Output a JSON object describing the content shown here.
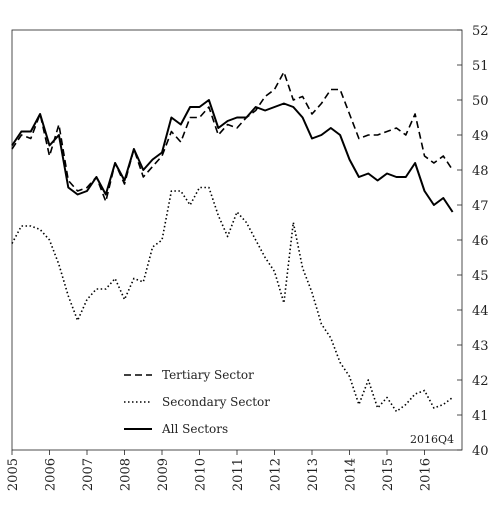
{
  "chart_data": {
    "type": "line",
    "title": "",
    "xlabel": "",
    "ylabel": "",
    "xlim": [
      2005,
      2017
    ],
    "ylim": [
      40,
      52
    ],
    "x_ticks": [
      "2005",
      "2006",
      "2007",
      "2008",
      "2009",
      "2010",
      "2011",
      "2012",
      "2013",
      "2014",
      "2015",
      "2016"
    ],
    "y_ticks": [
      "40",
      "41",
      "42",
      "43",
      "44",
      "45",
      "46",
      "47",
      "48",
      "49",
      "50",
      "51",
      "52"
    ],
    "annotation": "2016Q4",
    "legend_position": "bottom-left",
    "series": [
      {
        "name": "Tertiary Sector",
        "dash": "dashed",
        "points": [
          [
            2005.0,
            48.6
          ],
          [
            2005.25,
            49.0
          ],
          [
            2005.5,
            48.9
          ],
          [
            2005.75,
            49.6
          ],
          [
            2006.0,
            48.4
          ],
          [
            2006.25,
            49.3
          ],
          [
            2006.5,
            47.7
          ],
          [
            2006.75,
            47.4
          ],
          [
            2007.0,
            47.5
          ],
          [
            2007.25,
            47.8
          ],
          [
            2007.5,
            47.1
          ],
          [
            2007.75,
            48.2
          ],
          [
            2008.0,
            47.6
          ],
          [
            2008.25,
            48.6
          ],
          [
            2008.5,
            47.8
          ],
          [
            2008.75,
            48.1
          ],
          [
            2009.0,
            48.4
          ],
          [
            2009.25,
            49.1
          ],
          [
            2009.5,
            48.8
          ],
          [
            2009.75,
            49.5
          ],
          [
            2010.0,
            49.5
          ],
          [
            2010.25,
            49.8
          ],
          [
            2010.5,
            49.0
          ],
          [
            2010.75,
            49.3
          ],
          [
            2011.0,
            49.2
          ],
          [
            2011.25,
            49.5
          ],
          [
            2011.5,
            49.7
          ],
          [
            2011.75,
            50.1
          ],
          [
            2012.0,
            50.3
          ],
          [
            2012.25,
            50.8
          ],
          [
            2012.5,
            50.0
          ],
          [
            2012.75,
            50.1
          ],
          [
            2013.0,
            49.6
          ],
          [
            2013.25,
            49.9
          ],
          [
            2013.5,
            50.3
          ],
          [
            2013.75,
            50.3
          ],
          [
            2014.0,
            49.6
          ],
          [
            2014.25,
            48.9
          ],
          [
            2014.5,
            49.0
          ],
          [
            2014.75,
            49.0
          ],
          [
            2015.0,
            49.1
          ],
          [
            2015.25,
            49.2
          ],
          [
            2015.5,
            49.0
          ],
          [
            2015.75,
            49.6
          ],
          [
            2016.0,
            48.4
          ],
          [
            2016.25,
            48.2
          ],
          [
            2016.5,
            48.4
          ],
          [
            2016.75,
            48.0
          ]
        ]
      },
      {
        "name": "Secondary Sector",
        "dash": "dotted",
        "points": [
          [
            2005.0,
            45.9
          ],
          [
            2005.25,
            46.4
          ],
          [
            2005.5,
            46.4
          ],
          [
            2005.75,
            46.3
          ],
          [
            2006.0,
            46.0
          ],
          [
            2006.25,
            45.3
          ],
          [
            2006.5,
            44.4
          ],
          [
            2006.75,
            43.7
          ],
          [
            2007.0,
            44.3
          ],
          [
            2007.25,
            44.6
          ],
          [
            2007.5,
            44.6
          ],
          [
            2007.75,
            44.9
          ],
          [
            2008.0,
            44.3
          ],
          [
            2008.25,
            44.9
          ],
          [
            2008.5,
            44.8
          ],
          [
            2008.75,
            45.8
          ],
          [
            2009.0,
            46.0
          ],
          [
            2009.25,
            47.4
          ],
          [
            2009.5,
            47.4
          ],
          [
            2009.75,
            47.0
          ],
          [
            2010.0,
            47.5
          ],
          [
            2010.25,
            47.5
          ],
          [
            2010.5,
            46.7
          ],
          [
            2010.75,
            46.1
          ],
          [
            2011.0,
            46.8
          ],
          [
            2011.25,
            46.5
          ],
          [
            2011.5,
            46.0
          ],
          [
            2011.75,
            45.5
          ],
          [
            2012.0,
            45.1
          ],
          [
            2012.25,
            44.2
          ],
          [
            2012.5,
            46.5
          ],
          [
            2012.75,
            45.2
          ],
          [
            2013.0,
            44.5
          ],
          [
            2013.25,
            43.6
          ],
          [
            2013.5,
            43.2
          ],
          [
            2013.75,
            42.5
          ],
          [
            2014.0,
            42.1
          ],
          [
            2014.25,
            41.3
          ],
          [
            2014.5,
            42.0
          ],
          [
            2014.75,
            41.2
          ],
          [
            2015.0,
            41.5
          ],
          [
            2015.25,
            41.1
          ],
          [
            2015.5,
            41.3
          ],
          [
            2015.75,
            41.6
          ],
          [
            2016.0,
            41.7
          ],
          [
            2016.25,
            41.2
          ],
          [
            2016.5,
            41.3
          ],
          [
            2016.75,
            41.5
          ]
        ]
      },
      {
        "name": "All Sectors",
        "dash": "solid",
        "points": [
          [
            2005.0,
            48.7
          ],
          [
            2005.25,
            49.1
          ],
          [
            2005.5,
            49.1
          ],
          [
            2005.75,
            49.6
          ],
          [
            2006.0,
            48.7
          ],
          [
            2006.25,
            49.0
          ],
          [
            2006.5,
            47.5
          ],
          [
            2006.75,
            47.3
          ],
          [
            2007.0,
            47.4
          ],
          [
            2007.25,
            47.8
          ],
          [
            2007.5,
            47.3
          ],
          [
            2007.75,
            48.2
          ],
          [
            2008.0,
            47.7
          ],
          [
            2008.25,
            48.6
          ],
          [
            2008.5,
            48.0
          ],
          [
            2008.75,
            48.3
          ],
          [
            2009.0,
            48.5
          ],
          [
            2009.25,
            49.5
          ],
          [
            2009.5,
            49.3
          ],
          [
            2009.75,
            49.8
          ],
          [
            2010.0,
            49.8
          ],
          [
            2010.25,
            50.0
          ],
          [
            2010.5,
            49.2
          ],
          [
            2010.75,
            49.4
          ],
          [
            2011.0,
            49.5
          ],
          [
            2011.25,
            49.5
          ],
          [
            2011.5,
            49.8
          ],
          [
            2011.75,
            49.7
          ],
          [
            2012.0,
            49.8
          ],
          [
            2012.25,
            49.9
          ],
          [
            2012.5,
            49.8
          ],
          [
            2012.75,
            49.5
          ],
          [
            2013.0,
            48.9
          ],
          [
            2013.25,
            49.0
          ],
          [
            2013.5,
            49.2
          ],
          [
            2013.75,
            49.0
          ],
          [
            2014.0,
            48.3
          ],
          [
            2014.25,
            47.8
          ],
          [
            2014.5,
            47.9
          ],
          [
            2014.75,
            47.7
          ],
          [
            2015.0,
            47.9
          ],
          [
            2015.25,
            47.8
          ],
          [
            2015.5,
            47.8
          ],
          [
            2015.75,
            48.2
          ],
          [
            2016.0,
            47.4
          ],
          [
            2016.25,
            47.0
          ],
          [
            2016.5,
            47.2
          ],
          [
            2016.75,
            46.8
          ]
        ]
      }
    ]
  }
}
